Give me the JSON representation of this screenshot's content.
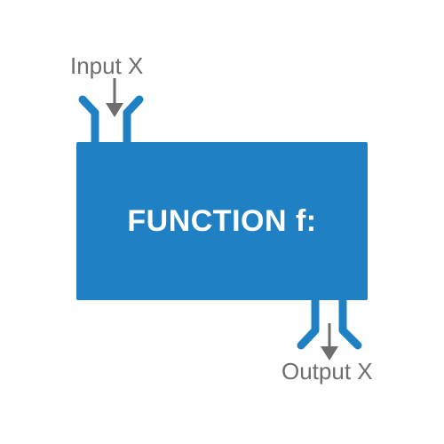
{
  "diagram": {
    "input_label": "Input X",
    "function_label": "FUNCTION f:",
    "output_label": "Output X"
  },
  "colors": {
    "box": "#2080c4",
    "arrow": "#6e6e6e",
    "text": "#6e6e6e",
    "box_text": "#ffffff"
  }
}
